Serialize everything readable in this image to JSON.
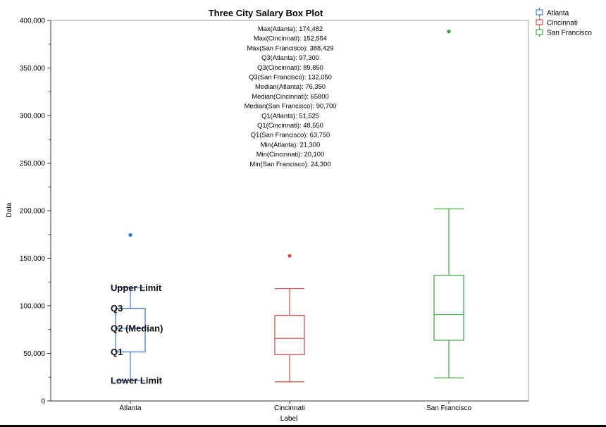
{
  "chart_data": {
    "type": "box",
    "title": "Three City Salary Box Plot",
    "xlabel": "Label",
    "ylabel": "Data",
    "ylim": [
      0,
      400000
    ],
    "yticks": [
      0,
      50000,
      100000,
      150000,
      200000,
      250000,
      300000,
      350000,
      400000
    ],
    "ytick_labels": [
      "0",
      "50,000",
      "100,000",
      "150,000",
      "200,000",
      "250,000",
      "300,000",
      "350,000",
      "400,000"
    ],
    "categories": [
      "Atlanta",
      "Cincinnati",
      "San Francisco"
    ],
    "series": [
      {
        "name": "Atlanta",
        "color": "#3a74d0",
        "q1": 51525,
        "median": 76350,
        "q3": 97300,
        "whisker_low": 21300,
        "whisker_high": 119000,
        "outliers": [
          174482
        ]
      },
      {
        "name": "Cincinnati",
        "color": "#d24848",
        "q1": 48550,
        "median": 65800,
        "q3": 89850,
        "whisker_low": 20100,
        "whisker_high": 118000,
        "outliers": [
          152554
        ]
      },
      {
        "name": "San Francisco",
        "color": "#3aa13f",
        "q1": 63750,
        "median": 90700,
        "q3": 132050,
        "whisker_low": 24300,
        "whisker_high": 202000,
        "outliers": [
          388429
        ]
      }
    ],
    "legend": {
      "placement": "top-right",
      "entries": [
        "Atlanta",
        "Cincinnati",
        "San Francisco"
      ]
    },
    "annotation_lines": [
      "Max(Atlanta): 174,482",
      "Max(Cincinnati): 152,554",
      "Max(San Francisco): 388,429",
      "Q3(Atlanta): 97,300",
      "Q3(Cincinnati): 89,850",
      "Q3(San Francisco): 132,050",
      "Median(Atlanta): 76,350",
      "Median(Cincinnati): 65800",
      "Median(San Francisco): 90,700",
      "Q1(Atlanta): 51,525",
      "Q1(Cincinnati): 48,550",
      "Q1(San Francisco): 63,750",
      "Min(Atlanta): 21,300",
      "Min(Cincinnati): 20,100",
      "Min(San Francisco): 24,300"
    ],
    "box_labels": [
      "Upper Limit",
      "Q3",
      "Q2 (Median)",
      "Q1",
      "Lower Limit"
    ]
  }
}
